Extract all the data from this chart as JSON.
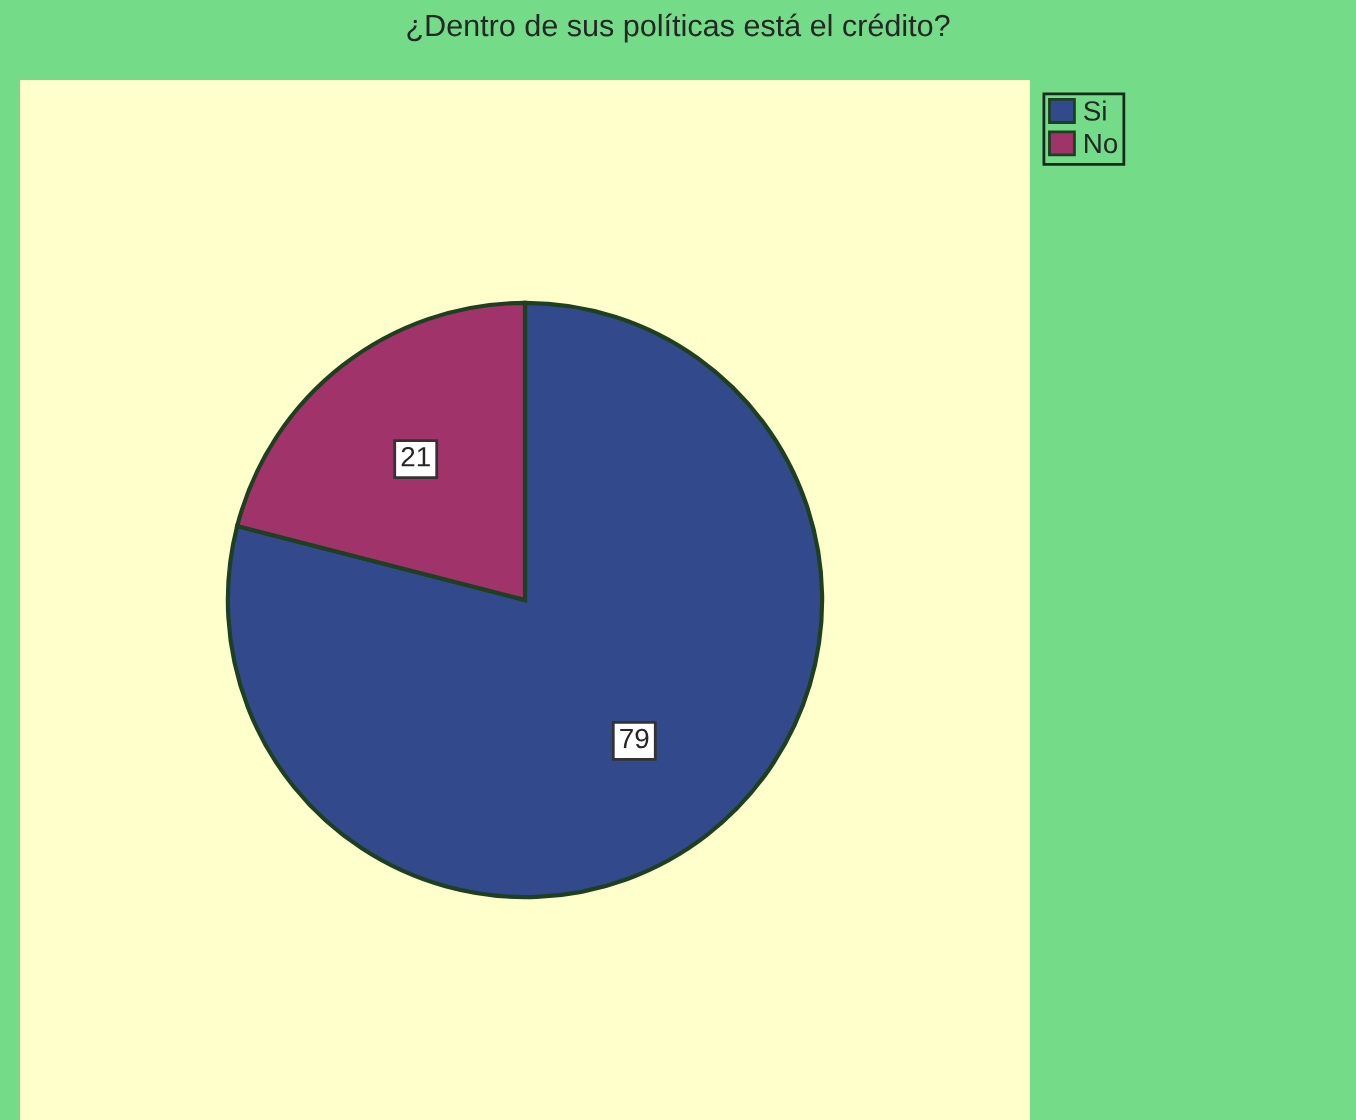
{
  "chart_data": {
    "type": "pie",
    "title": "¿Dentro de sus políticas está el crédito?",
    "categories": [
      "Si",
      "No"
    ],
    "values": [
      79,
      21
    ],
    "colors": [
      "#324a8c",
      "#a0346a"
    ],
    "data_labels": true,
    "legend": "top right"
  }
}
